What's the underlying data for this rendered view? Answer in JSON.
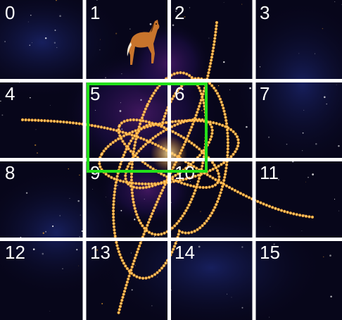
{
  "grid": {
    "cells": [
      {
        "label": "0"
      },
      {
        "label": "1"
      },
      {
        "label": "2"
      },
      {
        "label": "3"
      },
      {
        "label": "4"
      },
      {
        "label": "5"
      },
      {
        "label": "6"
      },
      {
        "label": "7"
      },
      {
        "label": "8"
      },
      {
        "label": "9"
      },
      {
        "label": "10"
      },
      {
        "label": "11"
      },
      {
        "label": "12"
      },
      {
        "label": "13"
      },
      {
        "label": "14"
      },
      {
        "label": "15"
      }
    ],
    "selected_cells": [
      "5",
      "6"
    ]
  },
  "scene": {
    "background": "starfield",
    "sprite": "horse-icon",
    "effect": "golden-light-trails"
  },
  "colors": {
    "selection": "#22e01a",
    "trail": "#ffb03a",
    "grid_line": "#ffffff",
    "sky": "#07061a"
  }
}
